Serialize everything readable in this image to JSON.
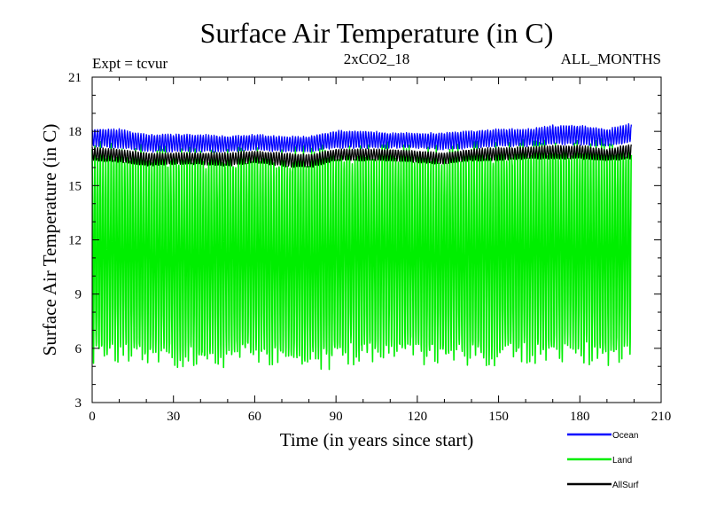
{
  "chart_data": {
    "type": "line",
    "title": "Surface Air Temperature (in C)",
    "expt_label": "Expt = tcvur",
    "subtitle": "2xCO2_18",
    "period_label": "ALL_MONTHS",
    "xlabel": "Time (in years since start)",
    "ylabel": "Surface Air Temperature (in C)",
    "xlim": [
      0,
      210
    ],
    "ylim": [
      3,
      21
    ],
    "xticks": [
      0,
      30,
      60,
      90,
      120,
      150,
      180,
      210
    ],
    "yticks": [
      3,
      6,
      9,
      12,
      15,
      18,
      21
    ],
    "xtick_labels": [
      "0",
      "30",
      "60",
      "90",
      "120",
      "150",
      "180",
      "210"
    ],
    "ytick_labels": [
      "3",
      "6",
      "9",
      "12",
      "15",
      "18",
      "21"
    ],
    "grid": false,
    "legend_position": "bottom-right, below plot",
    "x_range_data": [
      0,
      199
    ],
    "seasonal_samples_per_year": 12,
    "series": [
      {
        "name": "Ocean",
        "color": "#0000ff",
        "x": [
          0,
          10,
          20,
          30,
          40,
          50,
          60,
          70,
          80,
          90,
          100,
          110,
          120,
          130,
          140,
          150,
          160,
          170,
          180,
          190,
          199
        ],
        "max": [
          18.1,
          18.1,
          17.8,
          17.8,
          17.8,
          17.7,
          17.8,
          17.7,
          17.7,
          18.0,
          18.0,
          17.9,
          17.9,
          17.9,
          18.0,
          18.1,
          18.1,
          18.3,
          18.3,
          18.1,
          18.4
        ],
        "min": [
          17.2,
          17.1,
          16.9,
          16.9,
          16.9,
          16.9,
          17.0,
          16.9,
          16.9,
          17.1,
          17.1,
          17.1,
          17.1,
          17.0,
          17.1,
          17.2,
          17.2,
          17.3,
          17.3,
          17.2,
          17.4
        ]
      },
      {
        "name": "Land",
        "color": "#00ee00",
        "x": [
          0,
          10,
          20,
          30,
          40,
          50,
          60,
          70,
          80,
          90,
          100,
          110,
          120,
          130,
          140,
          150,
          160,
          170,
          180,
          190,
          199
        ],
        "max": [
          16.8,
          16.8,
          16.6,
          16.5,
          16.5,
          16.5,
          16.6,
          16.4,
          16.6,
          16.7,
          16.8,
          16.8,
          16.8,
          16.6,
          16.8,
          16.8,
          16.9,
          17.0,
          17.0,
          16.9,
          17.2
        ],
        "min": [
          5.6,
          5.9,
          5.6,
          5.6,
          5.5,
          5.6,
          5.8,
          5.5,
          5.2,
          5.6,
          5.8,
          6.0,
          5.8,
          5.6,
          5.6,
          5.7,
          5.8,
          5.9,
          5.8,
          5.6,
          5.9
        ]
      },
      {
        "name": "AllSurf",
        "color": "#000000",
        "x": [
          0,
          10,
          20,
          30,
          40,
          50,
          60,
          70,
          80,
          90,
          100,
          110,
          120,
          130,
          140,
          150,
          160,
          170,
          180,
          190,
          199
        ],
        "max": [
          17.1,
          17.0,
          16.8,
          16.8,
          16.8,
          16.8,
          16.9,
          16.8,
          16.7,
          17.0,
          17.0,
          17.0,
          16.9,
          16.8,
          17.0,
          17.1,
          17.1,
          17.2,
          17.2,
          17.0,
          17.3
        ],
        "min": [
          16.4,
          16.3,
          16.1,
          16.2,
          16.2,
          16.1,
          16.3,
          16.1,
          16.0,
          16.4,
          16.4,
          16.4,
          16.3,
          16.2,
          16.4,
          16.4,
          16.5,
          16.5,
          16.5,
          16.4,
          16.5
        ]
      }
    ]
  }
}
